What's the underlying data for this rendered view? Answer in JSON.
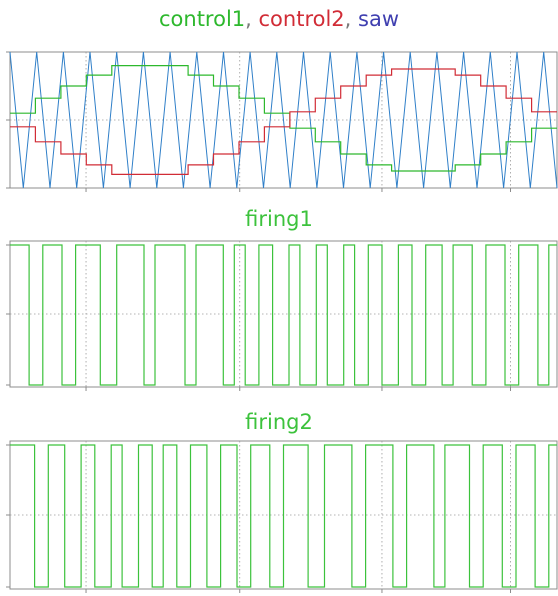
{
  "colors": {
    "control1": "#2db82d",
    "control2": "#d12c36",
    "saw": "#2f7fc8",
    "saw_title": "#3f3fb0",
    "firing": "#3cc23c",
    "frame": "#8c8c8c",
    "grid": "#9a9a9a",
    "comma": "#7a7a7a"
  },
  "panels": [
    {
      "title_parts": [
        {
          "text": "control1",
          "color_key": "control1"
        },
        {
          "text": ", ",
          "color_key": "comma"
        },
        {
          "text": "control2",
          "color_key": "control2"
        },
        {
          "text": ", ",
          "color_key": "comma"
        },
        {
          "text": "saw",
          "color_key": "saw_title"
        }
      ]
    },
    {
      "title": "firing1"
    },
    {
      "title": "firing2"
    }
  ],
  "chart_data": [
    {
      "type": "line",
      "title": "control1, control2, saw",
      "xlim": [
        0,
        1
      ],
      "ylim": [
        -1,
        1
      ],
      "grid": true,
      "series": [
        {
          "name": "control1",
          "step_levels": [
            0.1,
            0.1,
            0.32,
            0.32,
            0.5,
            0.5,
            0.66,
            0.66,
            0.8,
            0.8,
            0.8,
            0.8,
            0.8,
            0.8,
            0.66,
            0.66,
            0.5,
            0.5,
            0.32,
            0.32,
            0.1,
            0.1,
            -0.12,
            -0.12,
            -0.32,
            -0.32,
            -0.5,
            -0.5,
            -0.66,
            -0.66,
            -0.75,
            -0.75,
            -0.75,
            -0.75,
            -0.75,
            -0.66,
            -0.66,
            -0.5,
            -0.5,
            -0.32,
            -0.32,
            -0.12,
            -0.12
          ]
        },
        {
          "name": "control2",
          "step_levels": [
            -0.1,
            -0.1,
            -0.32,
            -0.32,
            -0.5,
            -0.5,
            -0.66,
            -0.66,
            -0.8,
            -0.8,
            -0.8,
            -0.8,
            -0.8,
            -0.8,
            -0.66,
            -0.66,
            -0.5,
            -0.5,
            -0.32,
            -0.32,
            -0.1,
            -0.1,
            0.12,
            0.12,
            0.32,
            0.32,
            0.5,
            0.5,
            0.66,
            0.66,
            0.75,
            0.75,
            0.75,
            0.75,
            0.75,
            0.66,
            0.66,
            0.5,
            0.5,
            0.32,
            0.32,
            0.12,
            0.12
          ]
        },
        {
          "name": "saw",
          "shape": "triangle",
          "peaks": 21,
          "ylim": [
            -1,
            1
          ]
        }
      ]
    },
    {
      "type": "line",
      "title": "firing1",
      "ylim": [
        0,
        1
      ],
      "series": [
        {
          "name": "firing1",
          "shape": "pulse-train",
          "high_intervals": [
            [
              0.0,
              0.035
            ],
            [
              0.06,
              0.095
            ],
            [
              0.12,
              0.165
            ],
            [
              0.195,
              0.245
            ],
            [
              0.265,
              0.32
            ],
            [
              0.34,
              0.39
            ],
            [
              0.41,
              0.43
            ],
            [
              0.455,
              0.48
            ],
            [
              0.51,
              0.53
            ],
            [
              0.56,
              0.58
            ],
            [
              0.61,
              0.63
            ],
            [
              0.655,
              0.68
            ],
            [
              0.71,
              0.735
            ],
            [
              0.76,
              0.79
            ],
            [
              0.81,
              0.845
            ],
            [
              0.87,
              0.905
            ],
            [
              0.93,
              0.965
            ],
            [
              0.985,
              1.0
            ]
          ]
        }
      ]
    },
    {
      "type": "line",
      "title": "firing2",
      "ylim": [
        0,
        1
      ],
      "series": [
        {
          "name": "firing2",
          "shape": "pulse-train",
          "high_intervals": [
            [
              0.0,
              0.045
            ],
            [
              0.07,
              0.1
            ],
            [
              0.13,
              0.155
            ],
            [
              0.185,
              0.205
            ],
            [
              0.235,
              0.26
            ],
            [
              0.28,
              0.305
            ],
            [
              0.33,
              0.36
            ],
            [
              0.385,
              0.415
            ],
            [
              0.44,
              0.475
            ],
            [
              0.5,
              0.545
            ],
            [
              0.575,
              0.625
            ],
            [
              0.65,
              0.7
            ],
            [
              0.725,
              0.775
            ],
            [
              0.795,
              0.84
            ],
            [
              0.865,
              0.9
            ],
            [
              0.925,
              0.96
            ],
            [
              0.985,
              1.0
            ]
          ]
        }
      ]
    }
  ]
}
